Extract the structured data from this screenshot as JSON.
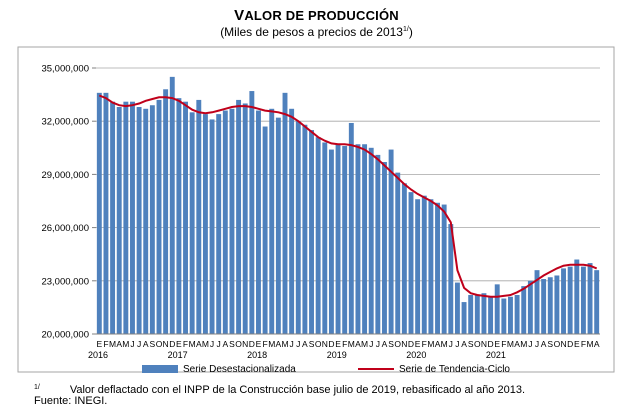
{
  "title_first": "V",
  "title_rest": "ALOR DE PRODUCCIÓN",
  "subtitle_text": "(Miles de pesos a precios de 2013",
  "subtitle_note": "1/",
  "subtitle_close": ")",
  "footnote": {
    "mark": "1/",
    "text": "Valor deflactado con el INPP de la Construcción base julio de 2019, rebasificado al año 2013.",
    "source": "Fuente: INEGI."
  },
  "colors": {
    "bar": "#4f81bd",
    "bar_edge": "#3a6aa5",
    "trend": "#c0001a",
    "grid": "#a6a6a6"
  },
  "chart_data": {
    "type": "bar",
    "ylim": [
      20000000,
      36000000
    ],
    "yticks": [
      20000000,
      23000000,
      26000000,
      29000000,
      32000000,
      35000000
    ],
    "ytick_labels": [
      "20,000,000",
      "23,000,000",
      "26,000,000",
      "29,000,000",
      "32,000,000",
      "35,000,000"
    ],
    "month_letters": [
      "E",
      "F",
      "M",
      "A",
      "M",
      "J",
      "J",
      "A",
      "S",
      "O",
      "N",
      "D"
    ],
    "years": [
      "2016",
      "2017",
      "2018",
      "2019",
      "2020",
      "2021"
    ],
    "grid": true,
    "legend_position": "bottom",
    "series": [
      {
        "name": "Serie Desestacionalizada",
        "kind": "bar",
        "values": [
          33600000,
          33600000,
          33100000,
          32800000,
          33100000,
          33100000,
          32800000,
          32700000,
          32900000,
          33200000,
          33800000,
          34500000,
          33300000,
          33100000,
          32500000,
          33200000,
          32400000,
          32100000,
          32400000,
          32600000,
          32700000,
          33200000,
          33000000,
          33700000,
          32600000,
          31700000,
          32700000,
          32200000,
          33600000,
          32700000,
          32000000,
          31800000,
          31500000,
          31100000,
          30800000,
          30400000,
          30700000,
          30600000,
          31900000,
          30700000,
          30700000,
          30500000,
          30100000,
          29700000,
          30400000,
          29100000,
          28500000,
          28000000,
          27600000,
          27800000,
          27600000,
          27400000,
          27300000,
          26200000,
          22900000,
          21800000,
          22200000,
          22200000,
          22300000,
          22100000,
          22800000,
          22000000,
          22100000,
          22200000,
          22700000,
          23000000,
          23600000,
          23100000,
          23200000,
          23300000,
          23700000,
          23800000,
          24200000,
          23800000,
          24000000,
          23600000
        ]
      },
      {
        "name": "Serie de Tendencia-Ciclo",
        "kind": "line",
        "values": [
          33450000,
          33300000,
          33050000,
          32900000,
          32850000,
          32900000,
          33000000,
          33150000,
          33250000,
          33350000,
          33350000,
          33300000,
          33150000,
          32900000,
          32650000,
          32500000,
          32450000,
          32500000,
          32600000,
          32700000,
          32800000,
          32850000,
          32850000,
          32800000,
          32700000,
          32600000,
          32550000,
          32500000,
          32400000,
          32250000,
          32000000,
          31700000,
          31400000,
          31100000,
          30900000,
          30750000,
          30700000,
          30700000,
          30650000,
          30550000,
          30400000,
          30150000,
          29850000,
          29500000,
          29150000,
          28800000,
          28450000,
          28150000,
          27900000,
          27700000,
          27500000,
          27250000,
          26900000,
          26300000,
          23600000,
          22600000,
          22300000,
          22200000,
          22150000,
          22100000,
          22100000,
          22150000,
          22200000,
          22350000,
          22550000,
          22800000,
          23050000,
          23300000,
          23500000,
          23700000,
          23850000,
          23900000,
          23900000,
          23900000,
          23850000,
          23700000
        ]
      }
    ]
  }
}
